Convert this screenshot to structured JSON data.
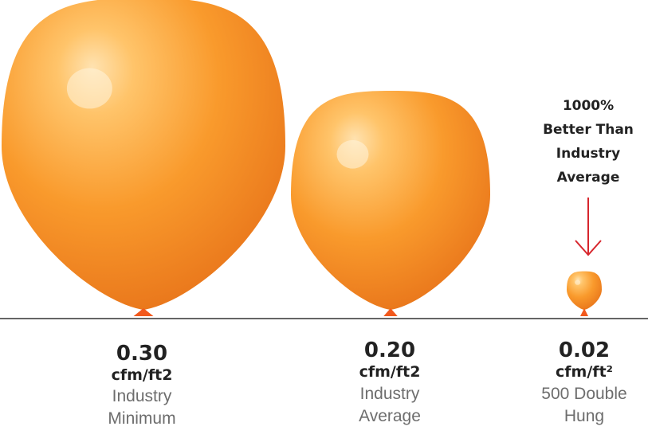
{
  "chart_data": {
    "type": "bar",
    "items": [
      {
        "value": "0.30",
        "unit": "cfm/ft2",
        "label_lines": [
          "Industry",
          "Minimum"
        ]
      },
      {
        "value": "0.20",
        "unit": "cfm/ft2",
        "label_lines": [
          "Industry",
          "Average"
        ]
      },
      {
        "value": "0.02",
        "unit": "cfm/ft²",
        "label_lines": [
          "500 Double",
          "Hung"
        ]
      }
    ],
    "values": [
      0.3,
      0.2,
      0.02
    ]
  },
  "callout": {
    "lines": [
      "1000%",
      "Better Than",
      "Industry",
      "Average"
    ]
  },
  "colors": {
    "balloon_light": "#ffc46a",
    "balloon_mid": "#f99a2c",
    "balloon_dark": "#e8741a",
    "knot": "#f2591d",
    "baseline": "#666666",
    "arrow": "#d7262d",
    "value_text": "#222222",
    "label_text": "#6d6d6d"
  }
}
